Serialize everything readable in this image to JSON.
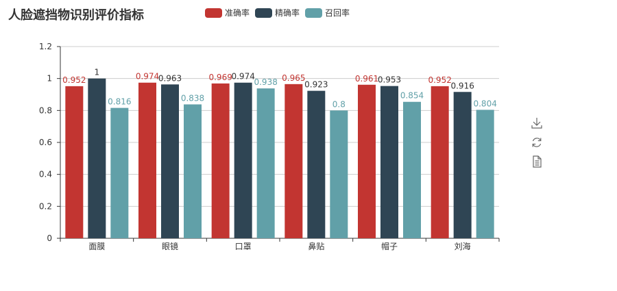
{
  "title": "人脸遮挡物识别评价指标",
  "colors": {
    "accent": "#c23531",
    "precision": "#2f4554",
    "recall": "#61a0a8",
    "axis": "#333333",
    "grid": "#cccccc",
    "icon": "#666666"
  },
  "toolbox": {
    "icons": [
      "download-icon",
      "refresh-icon",
      "data-view-icon"
    ]
  },
  "chart_data": {
    "type": "bar",
    "title": "人脸遮挡物识别评价指标",
    "categories": [
      "面膜",
      "眼镜",
      "口罩",
      "鼻贴",
      "帽子",
      "刘海"
    ],
    "series": [
      {
        "name": "准确率",
        "color": "#c23531",
        "values": [
          0.952,
          0.974,
          0.969,
          0.965,
          0.961,
          0.952
        ]
      },
      {
        "name": "精确率",
        "color": "#2f4554",
        "values": [
          1,
          0.963,
          0.974,
          0.923,
          0.953,
          0.916
        ]
      },
      {
        "name": "召回率",
        "color": "#61a0a8",
        "values": [
          0.816,
          0.838,
          0.938,
          0.8,
          0.854,
          0.804
        ]
      }
    ],
    "ylim": [
      0,
      1.2
    ],
    "yticks": [
      "0",
      "0.2",
      "0.4",
      "0.6",
      "0.8",
      "1",
      "1.2"
    ],
    "grid": true,
    "legend_position": "top-center"
  }
}
